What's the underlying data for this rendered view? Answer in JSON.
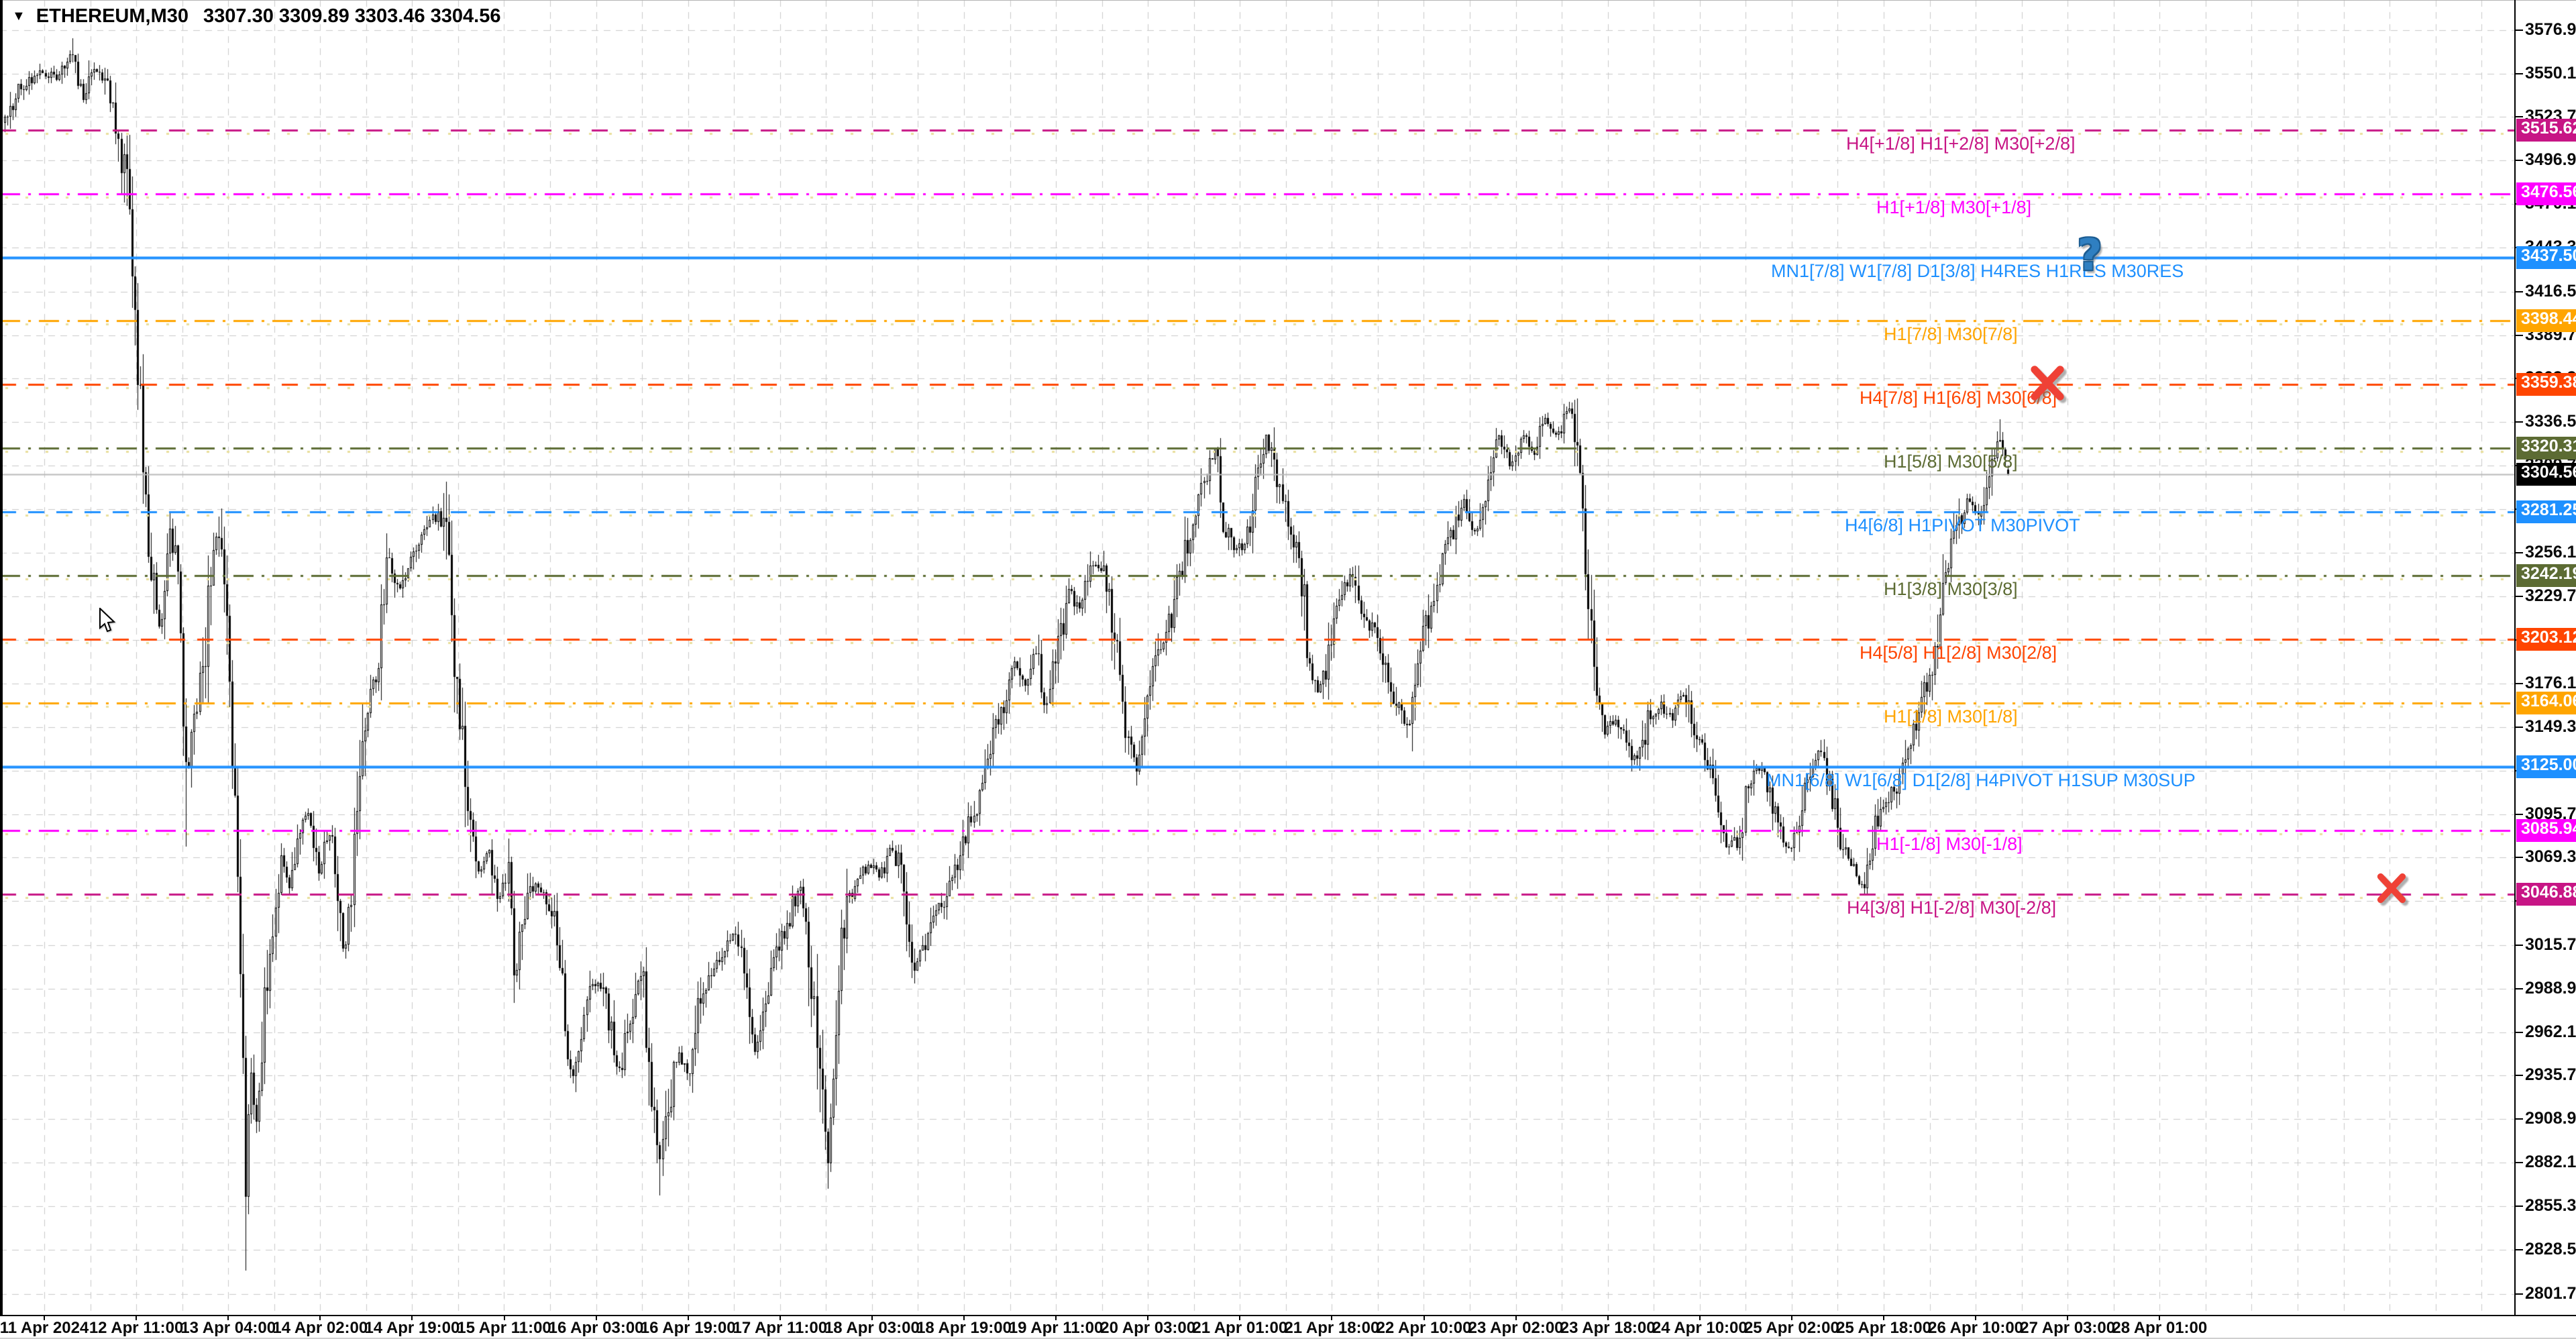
{
  "title": {
    "dropdown_glyph": "▼",
    "symbol_period": "ETHEREUM,M30",
    "ohlc": "3307.30 3309.89 3303.46 3304.56"
  },
  "colors": {
    "background": "#ffffff",
    "grid": "#c9c9c9",
    "bid_line": "#b9b9b9",
    "candle_bull": "#ffffff",
    "candle_bear": "#000000",
    "candle_outline": "#000000",
    "yellow_dots": "#e9df9c",
    "current_price_bg": "#000000",
    "blue": "#1e90ff",
    "magenta": "#ff00ff",
    "violet_red": "#c71585",
    "orange": "#ffa500",
    "orange_red": "#ff4500",
    "olive": "#5c6b33"
  },
  "chart_data": {
    "type": "candlestick",
    "symbol": "ETHEREUM",
    "timeframe": "M30",
    "current_bar": {
      "open": 3307.3,
      "high": 3309.89,
      "low": 3303.46,
      "close": 3304.56
    },
    "bid_price": 3304.56,
    "y_ticks": [
      "3576.90",
      "3550.10",
      "3523.70",
      "3496.90",
      "3470.10",
      "3443.30",
      "3416.50",
      "3389.70",
      "3363.30",
      "3336.50",
      "3309.70",
      "3283.00",
      "3256.10",
      "3229.70",
      "3202.90",
      "3176.10",
      "3149.30",
      "3122.50",
      "3095.70",
      "3069.30",
      "3042.50",
      "3015.70",
      "2988.90",
      "2962.10",
      "2935.70",
      "2908.90",
      "2882.10",
      "2855.30",
      "2828.50",
      "2801.70"
    ],
    "x_labels": [
      "11 Apr 2024",
      "12 Apr 11:00",
      "13 Apr 04:00",
      "14 Apr 02:00",
      "14 Apr 19:00",
      "15 Apr 11:00",
      "16 Apr 03:00",
      "16 Apr 19:00",
      "17 Apr 11:00",
      "18 Apr 03:00",
      "18 Apr 19:00",
      "19 Apr 11:00",
      "20 Apr 03:00",
      "21 Apr 01:00",
      "21 Apr 18:00",
      "22 Apr 10:00",
      "23 Apr 02:00",
      "23 Apr 18:00",
      "24 Apr 10:00",
      "25 Apr 02:00",
      "25 Apr 18:00",
      "26 Apr 10:00",
      "27 Apr 03:00",
      "28 Apr 01:00"
    ],
    "murrey_levels": [
      {
        "price": 3515.62,
        "label": "H4[+1/8] H1[+2/8] M30[+2/8]",
        "color": "#c71585",
        "style": "longdash",
        "label_x": 2752
      },
      {
        "price": 3476.56,
        "label": "H1[+1/8] M30[+1/8]",
        "color": "#ff00ff",
        "style": "dashdot",
        "label_x": 2797
      },
      {
        "price": 3437.5,
        "label": "MN1[7/8] W1[7/8] D1[3/8] H4RES H1RES M30RES",
        "color": "#1e90ff",
        "style": "solid",
        "label_x": 2640
      },
      {
        "price": 3398.44,
        "label": "H1[7/8] M30[7/8]",
        "color": "#ffa500",
        "style": "dashdot",
        "label_x": 2808
      },
      {
        "price": 3359.38,
        "label": "H4[7/8] H1[6/8] M30[6/8]",
        "color": "#ff4500",
        "style": "longdash",
        "label_x": 2772
      },
      {
        "price": 3320.31,
        "label": "H1[5/8] M30[5/8]",
        "color": "#5c6b33",
        "style": "dashdot",
        "label_x": 2808
      },
      {
        "price": 3281.25,
        "label": "H4[6/8] H1PIVOT M30PIVOT",
        "color": "#1e90ff",
        "style": "longdash",
        "label_x": 2750
      },
      {
        "price": 3242.19,
        "label": "H1[3/8] M30[3/8]",
        "color": "#5c6b33",
        "style": "dashdot",
        "label_x": 2808
      },
      {
        "price": 3203.12,
        "label": "H4[5/8] H1[2/8] M30[2/8]",
        "color": "#ff4500",
        "style": "longdash",
        "label_x": 2772
      },
      {
        "price": 3164.06,
        "label": "H1[1/8] M30[1/8]",
        "color": "#ffa500",
        "style": "dashdot",
        "label_x": 2808
      },
      {
        "price": 3125.0,
        "label": "MN1[6/8] W1[6/8] D1[2/8] H4PIVOT H1SUP M30SUP",
        "color": "#1e90ff",
        "style": "solid",
        "label_x": 2633
      },
      {
        "price": 3085.94,
        "label": "H1[-1/8] M30[-1/8]",
        "color": "#ff00ff",
        "style": "dashdot",
        "label_x": 2797
      },
      {
        "price": 3046.88,
        "label": "H4[3/8] H1[-2/8] M30[-2/8]",
        "color": "#c71585",
        "style": "longdash",
        "label_x": 2753
      }
    ],
    "marks": [
      {
        "type": "question-mark",
        "glyph": "?",
        "x": 3115,
        "y": 381
      },
      {
        "type": "cross",
        "x": 3052,
        "y": 571,
        "size": 56
      },
      {
        "type": "cross",
        "x": 3565,
        "y": 1324,
        "size": 48
      }
    ],
    "price_path": [
      [
        6,
        3520
      ],
      [
        29,
        3542
      ],
      [
        61,
        3552
      ],
      [
        86,
        3546
      ],
      [
        105,
        3564
      ],
      [
        122,
        3534
      ],
      [
        140,
        3554
      ],
      [
        157,
        3544
      ],
      [
        171,
        3516
      ],
      [
        191,
        3476
      ],
      [
        208,
        3340
      ],
      [
        225,
        3240
      ],
      [
        238,
        3206
      ],
      [
        252,
        3264
      ],
      [
        264,
        3246
      ],
      [
        277,
        3108
      ],
      [
        289,
        3164
      ],
      [
        304,
        3198
      ],
      [
        318,
        3274
      ],
      [
        333,
        3234
      ],
      [
        345,
        3142
      ],
      [
        355,
        3022
      ],
      [
        365,
        2868
      ],
      [
        372,
        2948
      ],
      [
        382,
        2904
      ],
      [
        392,
        2974
      ],
      [
        404,
        3008
      ],
      [
        416,
        3064
      ],
      [
        431,
        3054
      ],
      [
        446,
        3088
      ],
      [
        460,
        3098
      ],
      [
        475,
        3058
      ],
      [
        490,
        3088
      ],
      [
        504,
        3034
      ],
      [
        514,
        3008
      ],
      [
        529,
        3088
      ],
      [
        544,
        3164
      ],
      [
        561,
        3184
      ],
      [
        578,
        3256
      ],
      [
        593,
        3230
      ],
      [
        612,
        3258
      ],
      [
        632,
        3268
      ],
      [
        654,
        3282
      ],
      [
        666,
        3254
      ],
      [
        681,
        3160
      ],
      [
        698,
        3094
      ],
      [
        713,
        3058
      ],
      [
        727,
        3076
      ],
      [
        742,
        3040
      ],
      [
        757,
        3064
      ],
      [
        766,
        2998
      ],
      [
        781,
        3040
      ],
      [
        798,
        3054
      ],
      [
        815,
        3040
      ],
      [
        830,
        3028
      ],
      [
        840,
        2962
      ],
      [
        852,
        2936
      ],
      [
        864,
        2964
      ],
      [
        879,
        2988
      ],
      [
        894,
        2992
      ],
      [
        909,
        2964
      ],
      [
        923,
        2936
      ],
      [
        938,
        2974
      ],
      [
        955,
        3004
      ],
      [
        970,
        2926
      ],
      [
        982,
        2880
      ],
      [
        994,
        2918
      ],
      [
        1009,
        2948
      ],
      [
        1026,
        2936
      ],
      [
        1043,
        2984
      ],
      [
        1060,
        3000
      ],
      [
        1078,
        3010
      ],
      [
        1095,
        3024
      ],
      [
        1109,
        3000
      ],
      [
        1124,
        2952
      ],
      [
        1141,
        2984
      ],
      [
        1158,
        3010
      ],
      [
        1176,
        3034
      ],
      [
        1192,
        3054
      ],
      [
        1207,
        3000
      ],
      [
        1222,
        2946
      ],
      [
        1232,
        2882
      ],
      [
        1244,
        2974
      ],
      [
        1259,
        3038
      ],
      [
        1276,
        3054
      ],
      [
        1293,
        3064
      ],
      [
        1310,
        3058
      ],
      [
        1327,
        3074
      ],
      [
        1344,
        3060
      ],
      [
        1359,
        3002
      ],
      [
        1374,
        3010
      ],
      [
        1391,
        3034
      ],
      [
        1408,
        3044
      ],
      [
        1425,
        3064
      ],
      [
        1442,
        3088
      ],
      [
        1460,
        3110
      ],
      [
        1477,
        3140
      ],
      [
        1494,
        3164
      ],
      [
        1511,
        3190
      ],
      [
        1528,
        3176
      ],
      [
        1543,
        3198
      ],
      [
        1557,
        3162
      ],
      [
        1575,
        3198
      ],
      [
        1592,
        3234
      ],
      [
        1609,
        3220
      ],
      [
        1626,
        3248
      ],
      [
        1643,
        3244
      ],
      [
        1660,
        3204
      ],
      [
        1677,
        3142
      ],
      [
        1692,
        3126
      ],
      [
        1707,
        3164
      ],
      [
        1724,
        3190
      ],
      [
        1741,
        3210
      ],
      [
        1758,
        3244
      ],
      [
        1776,
        3278
      ],
      [
        1793,
        3298
      ],
      [
        1810,
        3318
      ],
      [
        1824,
        3272
      ],
      [
        1839,
        3256
      ],
      [
        1854,
        3264
      ],
      [
        1868,
        3288
      ],
      [
        1886,
        3328
      ],
      [
        1903,
        3300
      ],
      [
        1920,
        3270
      ],
      [
        1937,
        3250
      ],
      [
        1952,
        3182
      ],
      [
        1964,
        3170
      ],
      [
        1979,
        3194
      ],
      [
        1996,
        3228
      ],
      [
        2013,
        3244
      ],
      [
        2030,
        3212
      ],
      [
        2047,
        3210
      ],
      [
        2064,
        3190
      ],
      [
        2082,
        3162
      ],
      [
        2096,
        3148
      ],
      [
        2113,
        3194
      ],
      [
        2131,
        3220
      ],
      [
        2148,
        3250
      ],
      [
        2165,
        3270
      ],
      [
        2182,
        3288
      ],
      [
        2199,
        3266
      ],
      [
        2216,
        3298
      ],
      [
        2233,
        3328
      ],
      [
        2251,
        3310
      ],
      [
        2268,
        3328
      ],
      [
        2285,
        3318
      ],
      [
        2302,
        3338
      ],
      [
        2319,
        3328
      ],
      [
        2336,
        3344
      ],
      [
        2351,
        3330
      ],
      [
        2363,
        3240
      ],
      [
        2375,
        3180
      ],
      [
        2390,
        3146
      ],
      [
        2405,
        3154
      ],
      [
        2422,
        3140
      ],
      [
        2439,
        3126
      ],
      [
        2456,
        3154
      ],
      [
        2473,
        3164
      ],
      [
        2490,
        3154
      ],
      [
        2508,
        3170
      ],
      [
        2525,
        3144
      ],
      [
        2542,
        3130
      ],
      [
        2559,
        3104
      ],
      [
        2576,
        3076
      ],
      [
        2591,
        3080
      ],
      [
        2608,
        3120
      ],
      [
        2625,
        3124
      ],
      [
        2642,
        3100
      ],
      [
        2660,
        3076
      ],
      [
        2677,
        3080
      ],
      [
        2694,
        3120
      ],
      [
        2711,
        3134
      ],
      [
        2728,
        3110
      ],
      [
        2745,
        3076
      ],
      [
        2762,
        3060
      ],
      [
        2777,
        3050
      ],
      [
        2794,
        3090
      ],
      [
        2811,
        3104
      ],
      [
        2828,
        3114
      ],
      [
        2845,
        3140
      ],
      [
        2862,
        3164
      ],
      [
        2880,
        3186
      ],
      [
        2897,
        3240
      ],
      [
        2914,
        3268
      ],
      [
        2931,
        3288
      ],
      [
        2948,
        3280
      ],
      [
        2965,
        3308
      ],
      [
        2980,
        3328
      ],
      [
        2993,
        3304.56
      ]
    ],
    "spikes": [
      {
        "x": 105,
        "price": 3572,
        "side": "high"
      },
      {
        "x": 277,
        "price": 3076,
        "side": "low"
      },
      {
        "x": 366,
        "price": 2816,
        "side": "low"
      },
      {
        "x": 982,
        "price": 2862,
        "side": "low"
      },
      {
        "x": 1232,
        "price": 2866,
        "side": "low"
      },
      {
        "x": 2980,
        "price": 3338,
        "side": "high"
      }
    ],
    "cursor": {
      "x": 147,
      "y": 906
    }
  }
}
